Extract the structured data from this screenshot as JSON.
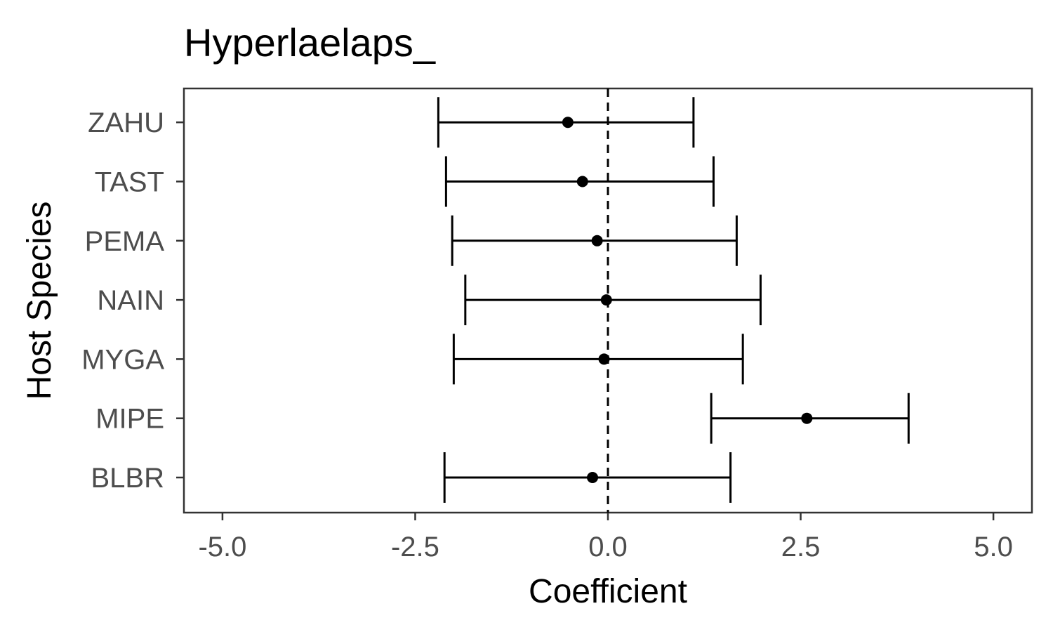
{
  "chart_data": {
    "type": "scatter",
    "title": "Hyperlaelaps_",
    "xlabel": "Coefficient",
    "ylabel": "Host Species",
    "xlim": [
      -5.5,
      5.5
    ],
    "x_ticks": [
      "-5.0",
      "-2.5",
      "0.0",
      "2.5",
      "5.0"
    ],
    "x_tick_values": [
      -5.0,
      -2.5,
      0.0,
      2.5,
      5.0
    ],
    "reference_line": {
      "x": 0.0,
      "style": "dashed"
    },
    "grid": false,
    "legend": "none",
    "categories": [
      "BLBR",
      "MIPE",
      "MYGA",
      "NAIN",
      "PEMA",
      "TAST",
      "ZAHU"
    ],
    "points": [
      {
        "category": "BLBR",
        "estimate": -0.2,
        "lower": -2.12,
        "upper": 1.59
      },
      {
        "category": "MIPE",
        "estimate": 2.58,
        "lower": 1.34,
        "upper": 3.9
      },
      {
        "category": "MYGA",
        "estimate": -0.05,
        "lower": -2.0,
        "upper": 1.75
      },
      {
        "category": "NAIN",
        "estimate": -0.02,
        "lower": -1.85,
        "upper": 1.98
      },
      {
        "category": "PEMA",
        "estimate": -0.14,
        "lower": -2.02,
        "upper": 1.67
      },
      {
        "category": "TAST",
        "estimate": -0.33,
        "lower": -2.1,
        "upper": 1.37
      },
      {
        "category": "ZAHU",
        "estimate": -0.52,
        "lower": -2.2,
        "upper": 1.11
      }
    ],
    "colors": {
      "points": "#000000",
      "panel_border": "#333333",
      "tick_text": "#4d4d4d"
    }
  }
}
